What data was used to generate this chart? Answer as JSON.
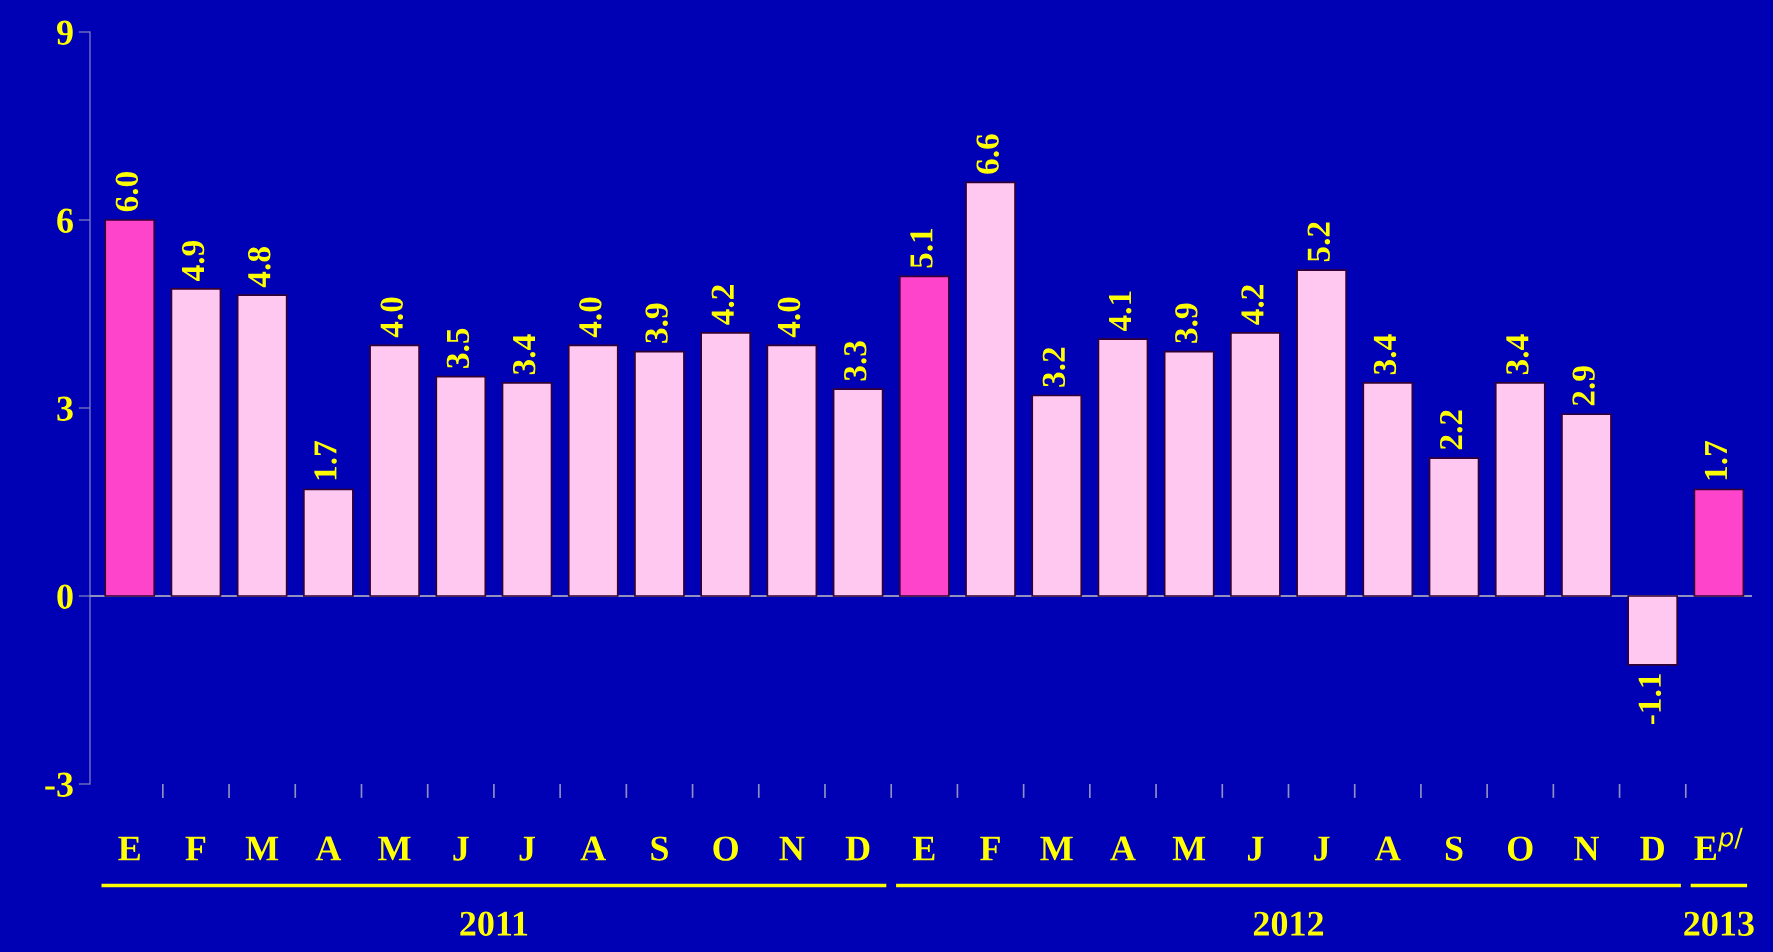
{
  "chart_data": {
    "type": "bar",
    "categories": [
      "E",
      "F",
      "M",
      "A",
      "M",
      "J",
      "J",
      "A",
      "S",
      "O",
      "N",
      "D",
      "E",
      "F",
      "M",
      "A",
      "M",
      "J",
      "J",
      "A",
      "S",
      "O",
      "N",
      "D",
      "E$^{p/}$"
    ],
    "values": [
      6.0,
      4.9,
      4.8,
      1.7,
      4.0,
      3.5,
      3.4,
      4.0,
      3.9,
      4.2,
      4.0,
      3.3,
      5.1,
      6.6,
      3.2,
      4.1,
      3.9,
      4.2,
      5.2,
      3.4,
      2.2,
      3.4,
      2.9,
      -1.1,
      1.7
    ],
    "colors": [
      "#ff44cc",
      "#ffc8f0",
      "#ffc8f0",
      "#ffc8f0",
      "#ffc8f0",
      "#ffc8f0",
      "#ffc8f0",
      "#ffc8f0",
      "#ffc8f0",
      "#ffc8f0",
      "#ffc8f0",
      "#ffc8f0",
      "#ff44cc",
      "#ffc8f0",
      "#ffc8f0",
      "#ffc8f0",
      "#ffc8f0",
      "#ffc8f0",
      "#ffc8f0",
      "#ffc8f0",
      "#ffc8f0",
      "#ffc8f0",
      "#ffc8f0",
      "#ffc8f0",
      "#ff44cc"
    ],
    "value_labels": [
      "6.0",
      "4.9",
      "4.8",
      "1.7",
      "4.0",
      "3.5",
      "3.4",
      "4.0",
      "3.9",
      "4.2",
      "4.0",
      "3.3",
      "5.1",
      "6.6",
      "3.2",
      "4.1",
      "3.9",
      "4.2",
      "5.2",
      "3.4",
      "2.2",
      "3.4",
      "2.9",
      "-1.1",
      "1.7"
    ],
    "ylim": [
      -3,
      9
    ],
    "yticks": [
      -3,
      0,
      3,
      6,
      9
    ],
    "annotations": [
      "2011",
      "2012",
      "2013"
    ],
    "ref_lines": [
      {
        "axis": "y",
        "value": 0,
        "color": "#9090c0"
      }
    ],
    "grid": false,
    "legend": false
  }
}
